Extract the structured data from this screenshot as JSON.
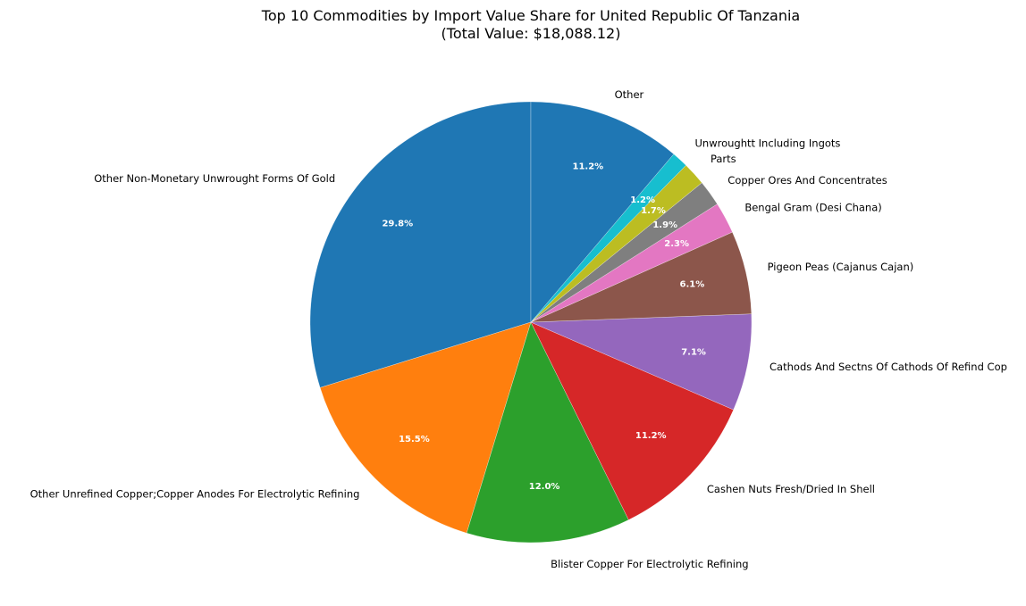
{
  "chart_data": {
    "type": "pie",
    "title": "Top 10 Commodities by Import Value Share for United Republic Of Tanzania",
    "subtitle": "(Total Value: $18,088.12)",
    "start_angle": 90,
    "direction": "counterclockwise",
    "slices": [
      {
        "label": "Other Non-Monetary Unwrought Forms Of Gold",
        "value": 29.8,
        "pct_label": "29.8%",
        "color": "#1f77b4"
      },
      {
        "label": "Other Unrefined Copper;Copper Anodes For Electrolytic Refining",
        "value": 15.5,
        "pct_label": "15.5%",
        "color": "#ff7f0e"
      },
      {
        "label": "Blister Copper For Electrolytic Refining",
        "value": 12.0,
        "pct_label": "12.0%",
        "color": "#2ca02c"
      },
      {
        "label": "Cashen Nuts Fresh/Dried In Shell",
        "value": 11.2,
        "pct_label": "11.2%",
        "color": "#d62728"
      },
      {
        "label": "Cathods And Sectns Of Cathods Of Refind Cop",
        "value": 7.1,
        "pct_label": "7.1%",
        "color": "#9467bd"
      },
      {
        "label": "Pigeon Peas (Cajanus Cajan)",
        "value": 6.1,
        "pct_label": "6.1%",
        "color": "#8c564b"
      },
      {
        "label": "Bengal Gram (Desi Chana)",
        "value": 2.3,
        "pct_label": "2.3%",
        "color": "#e377c2"
      },
      {
        "label": "Copper Ores And Concentrates",
        "value": 1.9,
        "pct_label": "1.9%",
        "color": "#7f7f7f"
      },
      {
        "label": "Parts",
        "value": 1.7,
        "pct_label": "1.7%",
        "color": "#bcbd22"
      },
      {
        "label": "Unwroughtt Including Ingots",
        "value": 1.2,
        "pct_label": "1.2%",
        "color": "#17becf"
      },
      {
        "label": "Other",
        "value": 11.2,
        "pct_label": "11.2%",
        "color": "#1f77b4"
      }
    ]
  }
}
